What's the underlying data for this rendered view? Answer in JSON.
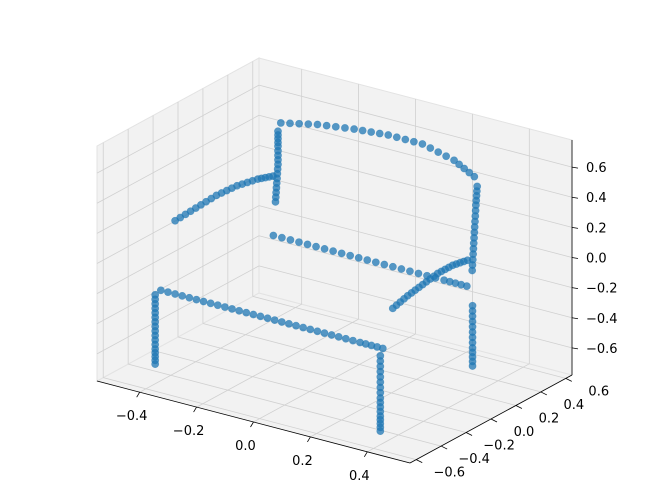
{
  "chart_data": {
    "type": "scatter",
    "title": "",
    "xlabel": "",
    "ylabel": "",
    "zlabel": "",
    "projection": "3d",
    "subject": "point cloud of an armchair",
    "marker_color": "#1f77b4",
    "pane_color": "#f2f2f2",
    "grid": true,
    "x_ticks": [
      -0.4,
      -0.2,
      0.0,
      0.2,
      0.4
    ],
    "y_ticks": [
      -0.6,
      -0.4,
      -0.2,
      0.0,
      0.2,
      0.4,
      0.6
    ],
    "z_ticks": [
      -0.6,
      -0.4,
      -0.2,
      0.0,
      0.2,
      0.4,
      0.6
    ],
    "x_tick_labels": [
      "−0.4",
      "−0.2",
      "0.0",
      "0.2",
      "0.4"
    ],
    "y_tick_labels": [
      "−0.6",
      "−0.4",
      "−0.2",
      "0.0",
      "0.2",
      "0.4",
      "0.6"
    ],
    "z_tick_labels": [
      "−0.6",
      "−0.4",
      "−0.2",
      "0.0",
      "0.2",
      "0.4",
      "0.6"
    ],
    "xlim": [
      -0.55,
      0.55
    ],
    "ylim": [
      -0.65,
      0.65
    ],
    "zlim": [
      -0.78,
      0.78
    ],
    "view": {
      "elev": 30,
      "azim": -60
    },
    "point_groups": [
      {
        "name": "left-arm-top",
        "points": [
          [
            -0.42,
            -0.32,
            0.2
          ],
          [
            -0.4,
            -0.2,
            0.24
          ],
          [
            -0.38,
            -0.08,
            0.28
          ],
          [
            -0.36,
            0.04,
            0.3
          ],
          [
            -0.34,
            0.16,
            0.3
          ],
          [
            -0.33,
            0.26,
            0.28
          ]
        ]
      },
      {
        "name": "right-arm-top",
        "points": [
          [
            0.38,
            -0.4,
            0.05
          ],
          [
            0.38,
            -0.28,
            0.08
          ],
          [
            0.38,
            -0.16,
            0.1
          ],
          [
            0.38,
            -0.04,
            0.12
          ],
          [
            0.38,
            0.08,
            0.12
          ],
          [
            0.38,
            0.2,
            0.1
          ]
        ]
      },
      {
        "name": "seat-front-edge",
        "points": [
          [
            -0.4,
            -0.48,
            -0.18
          ],
          [
            -0.3,
            -0.48,
            -0.18
          ],
          [
            -0.2,
            -0.48,
            -0.18
          ],
          [
            -0.1,
            -0.48,
            -0.18
          ],
          [
            0.0,
            -0.48,
            -0.18
          ],
          [
            0.1,
            -0.48,
            -0.18
          ],
          [
            0.2,
            -0.48,
            -0.18
          ],
          [
            0.3,
            -0.48,
            -0.18
          ],
          [
            0.38,
            -0.48,
            -0.18
          ]
        ]
      },
      {
        "name": "seat-back-edge",
        "points": [
          [
            -0.32,
            0.24,
            -0.1
          ],
          [
            -0.2,
            0.24,
            -0.1
          ],
          [
            -0.08,
            0.24,
            -0.1
          ],
          [
            0.04,
            0.24,
            -0.1
          ],
          [
            0.16,
            0.24,
            -0.1
          ],
          [
            0.28,
            0.24,
            -0.1
          ],
          [
            0.36,
            0.24,
            -0.1
          ]
        ]
      },
      {
        "name": "backrest-top",
        "points": [
          [
            -0.32,
            0.3,
            0.62
          ],
          [
            -0.2,
            0.32,
            0.66
          ],
          [
            -0.08,
            0.34,
            0.68
          ],
          [
            0.04,
            0.34,
            0.7
          ],
          [
            0.16,
            0.34,
            0.7
          ],
          [
            0.28,
            0.32,
            0.66
          ],
          [
            0.36,
            0.3,
            0.6
          ]
        ]
      },
      {
        "name": "backrest-left-side",
        "points": [
          [
            -0.33,
            0.28,
            0.1
          ],
          [
            -0.33,
            0.29,
            0.22
          ],
          [
            -0.33,
            0.3,
            0.34
          ],
          [
            -0.33,
            0.3,
            0.46
          ],
          [
            -0.33,
            0.3,
            0.56
          ]
        ]
      },
      {
        "name": "backrest-right-side",
        "points": [
          [
            0.37,
            0.26,
            0.0
          ],
          [
            0.37,
            0.27,
            0.14
          ],
          [
            0.37,
            0.28,
            0.28
          ],
          [
            0.37,
            0.29,
            0.42
          ],
          [
            0.37,
            0.3,
            0.54
          ]
        ]
      },
      {
        "name": "front-left-leg",
        "points": [
          [
            -0.42,
            -0.48,
            -0.22
          ],
          [
            -0.42,
            -0.48,
            -0.34
          ],
          [
            -0.42,
            -0.48,
            -0.46
          ],
          [
            -0.42,
            -0.48,
            -0.58
          ],
          [
            -0.42,
            -0.48,
            -0.68
          ]
        ]
      },
      {
        "name": "front-right-leg",
        "points": [
          [
            0.38,
            -0.5,
            -0.22
          ],
          [
            0.38,
            -0.5,
            -0.36
          ],
          [
            0.38,
            -0.5,
            -0.5
          ],
          [
            0.38,
            -0.5,
            -0.62
          ],
          [
            0.38,
            -0.5,
            -0.72
          ]
        ]
      },
      {
        "name": "back-right-leg",
        "points": [
          [
            0.38,
            0.24,
            -0.22
          ],
          [
            0.38,
            0.24,
            -0.36
          ],
          [
            0.38,
            0.24,
            -0.5
          ],
          [
            0.38,
            0.24,
            -0.62
          ]
        ]
      }
    ]
  }
}
